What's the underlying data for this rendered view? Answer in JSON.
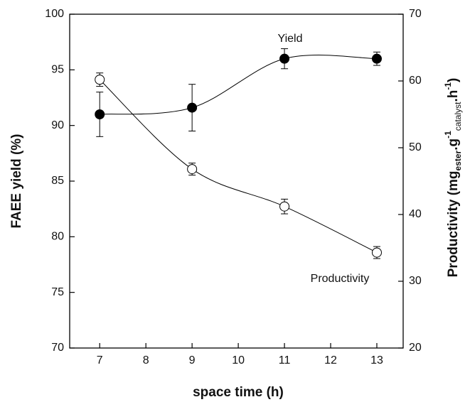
{
  "chart_data": {
    "type": "line",
    "xlabel": "space time (h)",
    "ylabel": "FAEE yield (%)",
    "y2label_parts": [
      "Productivity (mg",
      "ester",
      ".g",
      "-1",
      "catalyst",
      ".h",
      "-1",
      ")"
    ],
    "x": [
      7,
      9,
      11,
      13
    ],
    "series": [
      {
        "name": "Yield",
        "color": "#000000",
        "marker": "filled",
        "values": [
          91,
          91.6,
          96,
          96
        ],
        "errors": [
          2,
          2.1,
          0.9,
          0.6
        ]
      },
      {
        "name": "Productivity",
        "color": "#000000",
        "marker": "open",
        "axis": "y2",
        "values": [
          60.2,
          46.8,
          41.2,
          34.3
        ],
        "errors": [
          1,
          0.9,
          1.1,
          0.9
        ]
      }
    ],
    "xlim": [
      6.35,
      13.57
    ],
    "xticks": [
      7,
      8,
      9,
      10,
      11,
      12,
      13
    ],
    "ylim": [
      70,
      100
    ],
    "yticks": [
      70,
      75,
      80,
      85,
      90,
      95,
      100
    ],
    "y2lim": [
      20,
      70
    ],
    "y2ticks": [
      20,
      30,
      40,
      50,
      60,
      70
    ],
    "smooth": true
  }
}
